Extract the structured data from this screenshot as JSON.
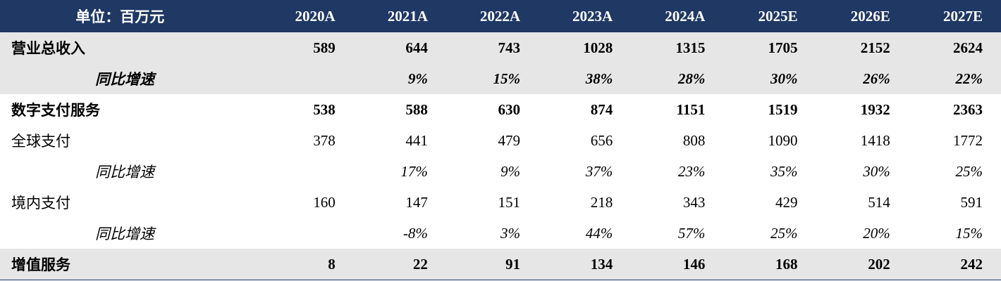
{
  "table": {
    "header": {
      "unit_label": "单位：百万元",
      "years": [
        "2020A",
        "2021A",
        "2022A",
        "2023A",
        "2024A",
        "2025E",
        "2026E",
        "2027E"
      ]
    },
    "rows": [
      {
        "label": "营业总收入",
        "values": [
          "589",
          "644",
          "743",
          "1028",
          "1315",
          "1705",
          "2152",
          "2624"
        ]
      },
      {
        "label": "同比增速",
        "values": [
          "",
          "9%",
          "15%",
          "38%",
          "28%",
          "30%",
          "26%",
          "22%"
        ]
      },
      {
        "label": "数字支付服务",
        "values": [
          "538",
          "588",
          "630",
          "874",
          "1151",
          "1519",
          "1932",
          "2363"
        ]
      },
      {
        "label": "全球支付",
        "values": [
          "378",
          "441",
          "479",
          "656",
          "808",
          "1090",
          "1418",
          "1772"
        ]
      },
      {
        "label": "同比增速",
        "values": [
          "",
          "17%",
          "9%",
          "37%",
          "23%",
          "35%",
          "30%",
          "25%"
        ]
      },
      {
        "label": "境内支付",
        "values": [
          "160",
          "147",
          "151",
          "218",
          "343",
          "429",
          "514",
          "591"
        ]
      },
      {
        "label": "同比增速",
        "values": [
          "",
          "-8%",
          "3%",
          "44%",
          "57%",
          "25%",
          "20%",
          "15%"
        ]
      },
      {
        "label": "增值服务",
        "values": [
          "8",
          "22",
          "91",
          "134",
          "146",
          "168",
          "202",
          "242"
        ]
      }
    ]
  },
  "colors": {
    "header_bg": "#1f3864",
    "header_text": "#ffffff",
    "shaded_row_bg": "#e6e6e6"
  }
}
